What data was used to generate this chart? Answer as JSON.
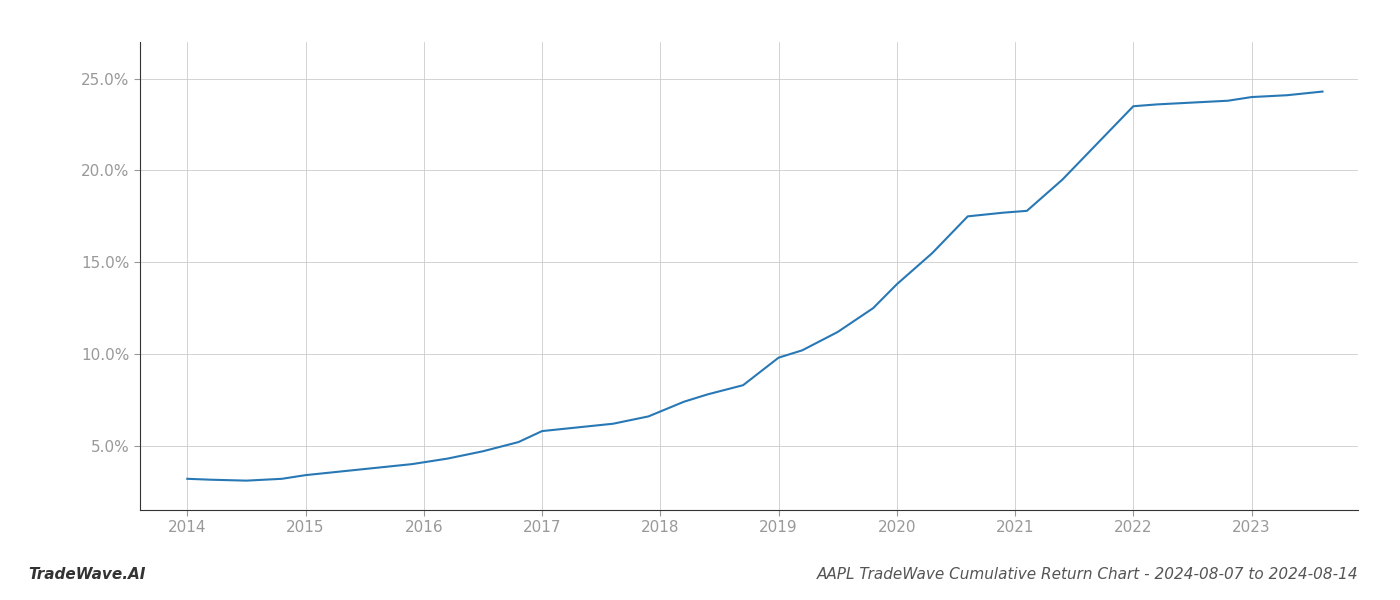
{
  "title": "AAPL TradeWave Cumulative Return Chart - 2024-08-07 to 2024-08-14",
  "watermark": "TradeWave.AI",
  "line_color": "#2878b5",
  "background_color": "#ffffff",
  "grid_color": "#cccccc",
  "x_values": [
    2014.0,
    2014.2,
    2014.5,
    2014.8,
    2015.0,
    2015.3,
    2015.6,
    2015.9,
    2016.2,
    2016.5,
    2016.8,
    2017.0,
    2017.3,
    2017.6,
    2017.9,
    2018.2,
    2018.4,
    2018.7,
    2019.0,
    2019.2,
    2019.5,
    2019.8,
    2020.0,
    2020.3,
    2020.6,
    2020.9,
    2021.1,
    2021.4,
    2021.7,
    2022.0,
    2022.2,
    2022.5,
    2022.8,
    2023.0,
    2023.3,
    2023.6
  ],
  "y_values": [
    3.2,
    3.15,
    3.1,
    3.2,
    3.4,
    3.6,
    3.8,
    4.0,
    4.3,
    4.7,
    5.2,
    5.8,
    6.0,
    6.2,
    6.6,
    7.4,
    7.8,
    8.3,
    9.8,
    10.2,
    11.2,
    12.5,
    13.8,
    15.5,
    17.5,
    17.7,
    17.8,
    19.5,
    21.5,
    23.5,
    23.6,
    23.7,
    23.8,
    24.0,
    24.1,
    24.3
  ],
  "xlim": [
    2013.6,
    2023.9
  ],
  "ylim": [
    1.5,
    27.0
  ],
  "yticks": [
    5.0,
    10.0,
    15.0,
    20.0,
    25.0
  ],
  "ytick_labels": [
    "5.0%",
    "10.0%",
    "15.0%",
    "20.0%",
    "25.0%"
  ],
  "xticks": [
    2014,
    2015,
    2016,
    2017,
    2018,
    2019,
    2020,
    2021,
    2022,
    2023
  ],
  "line_width": 1.5,
  "title_fontsize": 11,
  "watermark_fontsize": 11,
  "tick_fontsize": 11,
  "tick_color": "#999999"
}
